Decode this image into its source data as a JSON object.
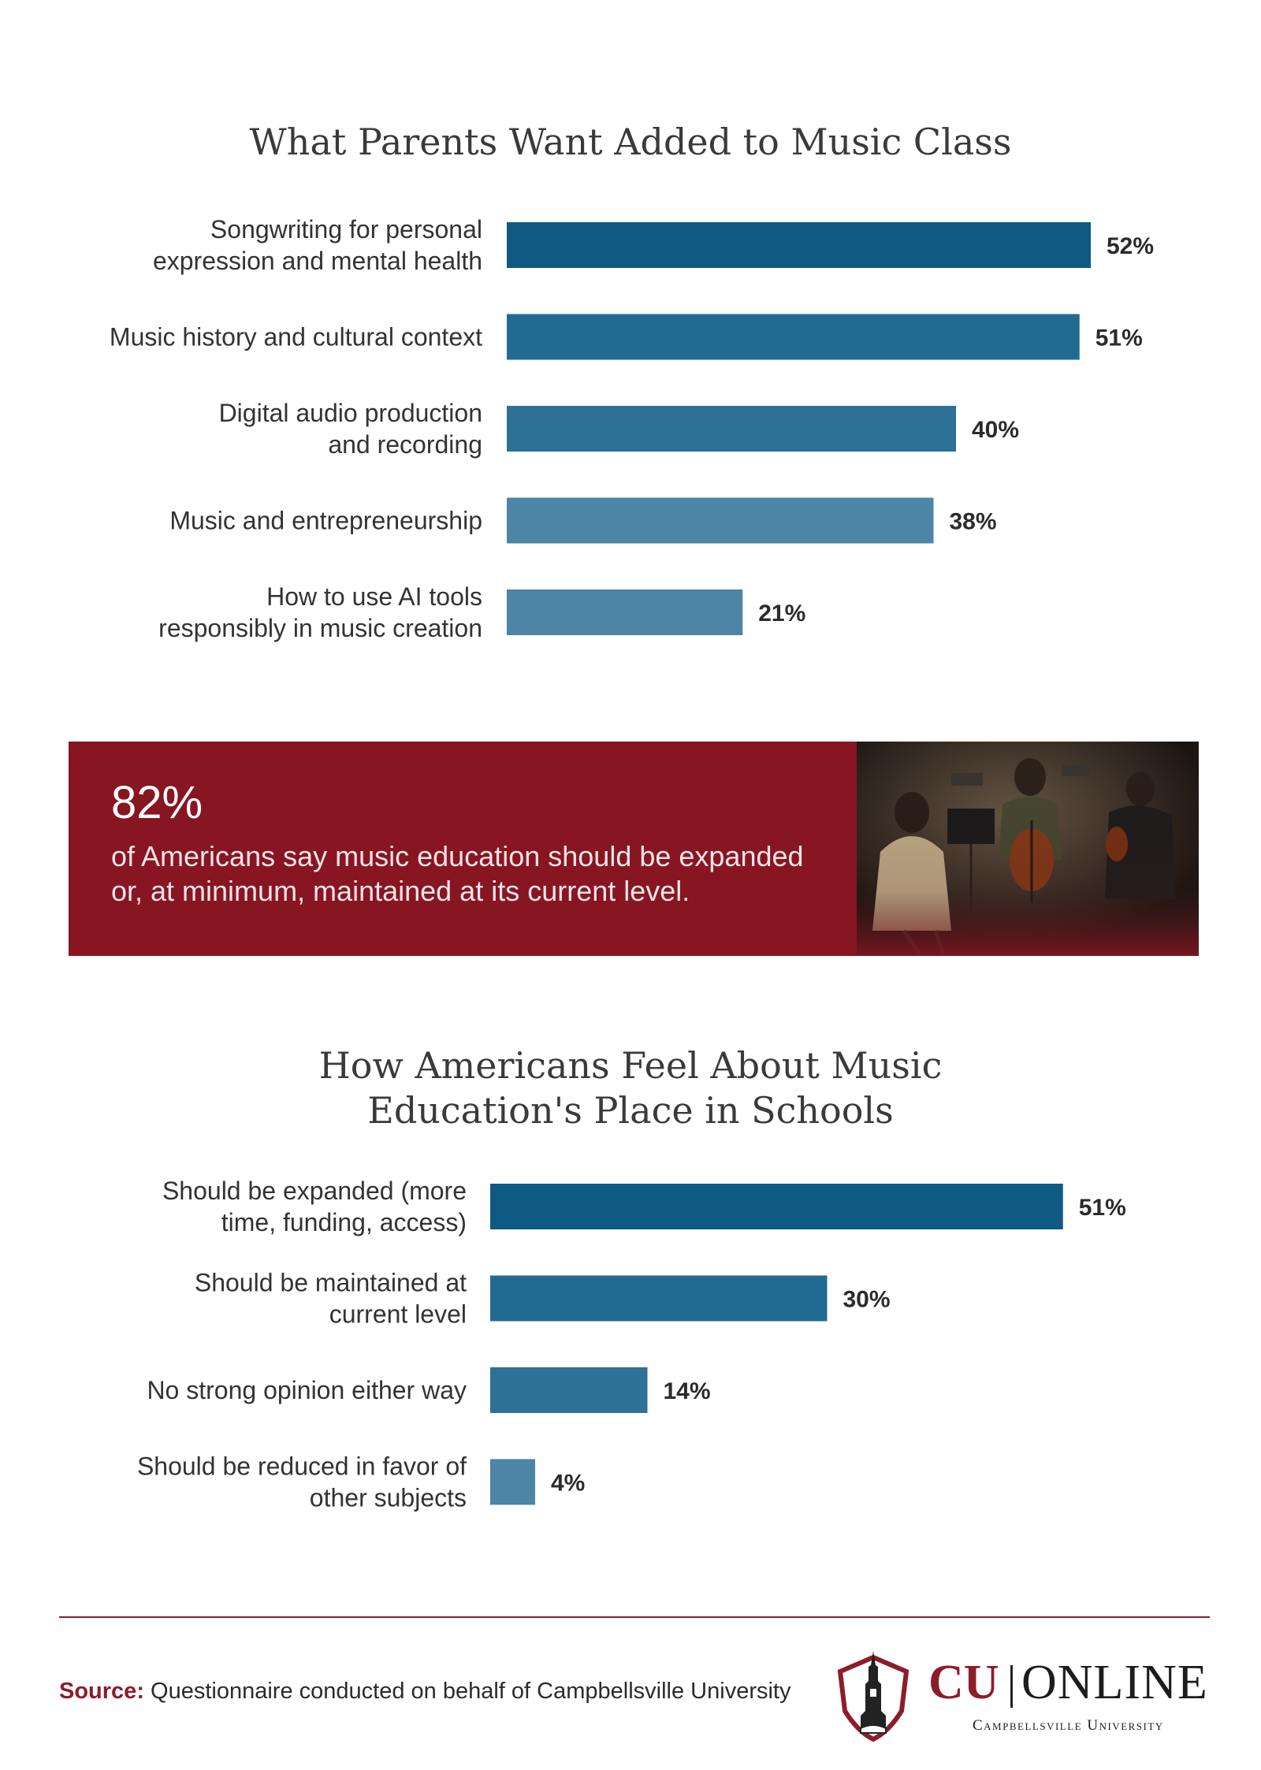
{
  "chart_data": [
    {
      "type": "bar",
      "orientation": "horizontal",
      "title": "What Parents Want Added to Music Class",
      "categories": [
        [
          "Songwriting for personal",
          "expression and mental health"
        ],
        [
          "Music history and cultural context"
        ],
        [
          "Digital audio production",
          "and recording"
        ],
        [
          "Music and entrepreneurship"
        ],
        [
          "How to use AI tools",
          "responsibly in music creation"
        ]
      ],
      "values": [
        52,
        51,
        40,
        38,
        21
      ],
      "value_labels": [
        "52%",
        "51%",
        "40%",
        "38%",
        "21%"
      ],
      "bar_colors": [
        "#0f5a82",
        "#216b92",
        "#2d7197",
        "#4c85a5",
        "#4c85a5"
      ],
      "unit": "%",
      "legend": "none",
      "grid": false
    },
    {
      "type": "bar",
      "orientation": "horizontal",
      "title": "How Americans Feel About Music Education's Place in Schools",
      "title_lines": [
        "How Americans Feel About Music",
        "Education's Place in Schools"
      ],
      "categories": [
        [
          "Should be expanded (more",
          "time, funding, access)"
        ],
        [
          "Should be maintained at",
          "current level"
        ],
        [
          "No strong opinion either way"
        ],
        [
          "Should be reduced in favor of",
          "other subjects"
        ]
      ],
      "values": [
        51,
        30,
        14,
        4
      ],
      "value_labels": [
        "51%",
        "30%",
        "14%",
        "4%"
      ],
      "bar_colors": [
        "#0f5a82",
        "#216b92",
        "#2d7197",
        "#4c85a5"
      ],
      "unit": "%",
      "legend": "none",
      "grid": false
    }
  ],
  "stat_banner": {
    "number": "82%",
    "text": "of Americans say music education should be expanded or, at minimum, maintained at its current level.",
    "background": "#871622",
    "image": "musicians-playing-strings-photo"
  },
  "footer": {
    "source_label": "Source:",
    "source_text": " Questionnaire conducted on behalf of Campbellsville University",
    "accent_color": "#8c1d2a",
    "logo": {
      "icon": "tower-shield-icon",
      "cu": "CU",
      "online": "ONLINE",
      "subtitle": "Campbellsville University"
    }
  }
}
